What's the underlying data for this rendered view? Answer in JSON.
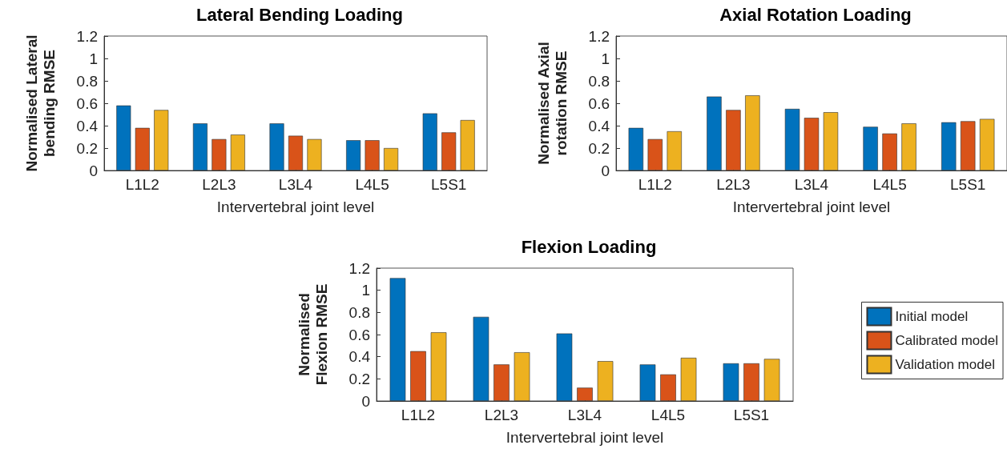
{
  "chart_data": [
    {
      "type": "bar",
      "title": "Lateral Bending Loading",
      "xlabel": "Intervertebral joint level",
      "ylabel": "Normalised Lateral bending RMSE",
      "categories": [
        "L1L2",
        "L2L3",
        "L3L4",
        "L4L5",
        "L5S1"
      ],
      "series": [
        {
          "color": "#0072bd",
          "values": [
            0.58,
            0.42,
            0.42,
            0.27,
            0.51
          ]
        },
        {
          "color": "#d95319",
          "values": [
            0.38,
            0.28,
            0.31,
            0.27,
            0.34
          ]
        },
        {
          "color": "#edb120",
          "values": [
            0.54,
            0.32,
            0.28,
            0.2,
            0.45
          ]
        }
      ],
      "ylim": [
        0,
        1.2
      ],
      "yticks": [
        0,
        0.2,
        0.4,
        0.6,
        0.8,
        1,
        1.2
      ],
      "grid": false,
      "legend": false
    },
    {
      "type": "bar",
      "title": "Axial Rotation Loading",
      "xlabel": "Intervertebral joint level",
      "ylabel": "Normalised Axial rotation RMSE",
      "categories": [
        "L1L2",
        "L2L3",
        "L3L4",
        "L4L5",
        "L5S1"
      ],
      "series": [
        {
          "color": "#0072bd",
          "values": [
            0.38,
            0.66,
            0.55,
            0.39,
            0.43
          ]
        },
        {
          "color": "#d95319",
          "values": [
            0.28,
            0.54,
            0.47,
            0.33,
            0.44
          ]
        },
        {
          "color": "#edb120",
          "values": [
            0.35,
            0.67,
            0.52,
            0.42,
            0.46
          ]
        }
      ],
      "ylim": [
        0,
        1.2
      ],
      "yticks": [
        0,
        0.2,
        0.4,
        0.6,
        0.8,
        1,
        1.2
      ],
      "grid": false,
      "legend": false
    },
    {
      "type": "bar",
      "title": "Flexion Loading",
      "xlabel": "Intervertebral joint level",
      "ylabel": "Normalised Flexion RMSE",
      "categories": [
        "L1L2",
        "L2L3",
        "L3L4",
        "L4L5",
        "L5S1"
      ],
      "series": [
        {
          "name": "Initial model",
          "color": "#0072bd",
          "values": [
            1.11,
            0.76,
            0.61,
            0.33,
            0.34
          ]
        },
        {
          "name": "Calibrated model",
          "color": "#d95319",
          "values": [
            0.45,
            0.33,
            0.12,
            0.24,
            0.34
          ]
        },
        {
          "name": "Validation model",
          "color": "#edb120",
          "values": [
            0.62,
            0.44,
            0.36,
            0.39,
            0.38
          ]
        }
      ],
      "ylim": [
        0,
        1.2
      ],
      "yticks": [
        0,
        0.2,
        0.4,
        0.6,
        0.8,
        1,
        1.2
      ],
      "grid": false,
      "legend": "right"
    }
  ]
}
